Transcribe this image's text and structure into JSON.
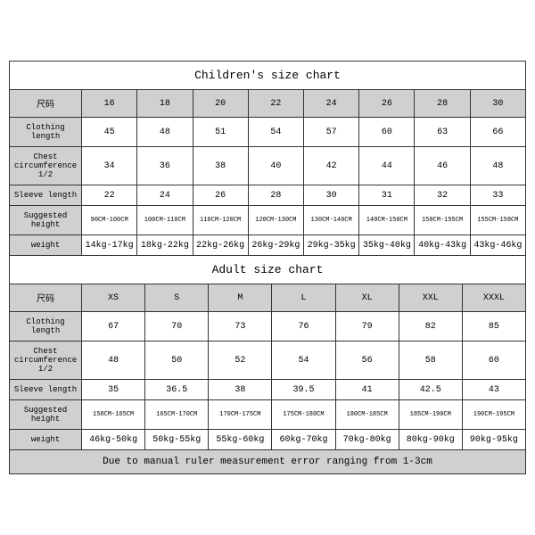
{
  "children_table": {
    "type": "table",
    "title": "Children's size chart",
    "title_fontsize": 13,
    "label_fontsize": 9,
    "data_fontsize": 10,
    "background_color": "#ffffff",
    "header_bg": "#d0d0d0",
    "border_color": "#333333",
    "columns": [
      "尺码",
      "16",
      "18",
      "20",
      "22",
      "24",
      "26",
      "28",
      "30"
    ],
    "rows": [
      {
        "label": "Clothing length",
        "values": [
          "45",
          "48",
          "51",
          "54",
          "57",
          "60",
          "63",
          "66"
        ]
      },
      {
        "label": "Chest circumference 1/2",
        "values": [
          "34",
          "36",
          "38",
          "40",
          "42",
          "44",
          "46",
          "48"
        ]
      },
      {
        "label": "Sleeve length",
        "values": [
          "22",
          "24",
          "26",
          "28",
          "30",
          "31",
          "32",
          "33"
        ]
      },
      {
        "label": "Suggested height",
        "values": [
          "90CM-100CM",
          "100CM-110CM",
          "110CM-120CM",
          "120CM-130CM",
          "130CM-140CM",
          "140CM-150CM",
          "150CM-155CM",
          "155CM-158CM"
        ],
        "small": true
      },
      {
        "label": "weight",
        "values": [
          "14kg-17kg",
          "18kg-22kg",
          "22kg-26kg",
          "26kg-29kg",
          "29kg-35kg",
          "35kg-40kg",
          "40kg-43kg",
          "43kg-46kg"
        ]
      }
    ]
  },
  "adult_table": {
    "type": "table",
    "title": "Adult size chart",
    "title_fontsize": 13,
    "label_fontsize": 9,
    "data_fontsize": 10,
    "background_color": "#ffffff",
    "header_bg": "#d0d0d0",
    "border_color": "#333333",
    "columns": [
      "尺码",
      "XS",
      "S",
      "M",
      "L",
      "XL",
      "XXL",
      "XXXL"
    ],
    "rows": [
      {
        "label": "Clothing length",
        "values": [
          "67",
          "70",
          "73",
          "76",
          "79",
          "82",
          "85"
        ]
      },
      {
        "label": "Chest circumference 1/2",
        "values": [
          "48",
          "50",
          "52",
          "54",
          "56",
          "58",
          "60"
        ]
      },
      {
        "label": "Sleeve length",
        "values": [
          "35",
          "36.5",
          "38",
          "39.5",
          "41",
          "42.5",
          "43"
        ]
      },
      {
        "label": "Suggested height",
        "values": [
          "158CM-165CM",
          "165CM-170CM",
          "170CM-175CM",
          "175CM-180CM",
          "180CM-185CM",
          "185CM-190CM",
          "190CM-195CM"
        ],
        "small": true
      },
      {
        "label": "weight",
        "values": [
          "46kg-50kg",
          "50kg-55kg",
          "55kg-60kg",
          "60kg-70kg",
          "70kg-80kg",
          "80kg-90kg",
          "90kg-95kg"
        ]
      }
    ],
    "note": "Due to manual ruler measurement error ranging from 1-3cm"
  }
}
